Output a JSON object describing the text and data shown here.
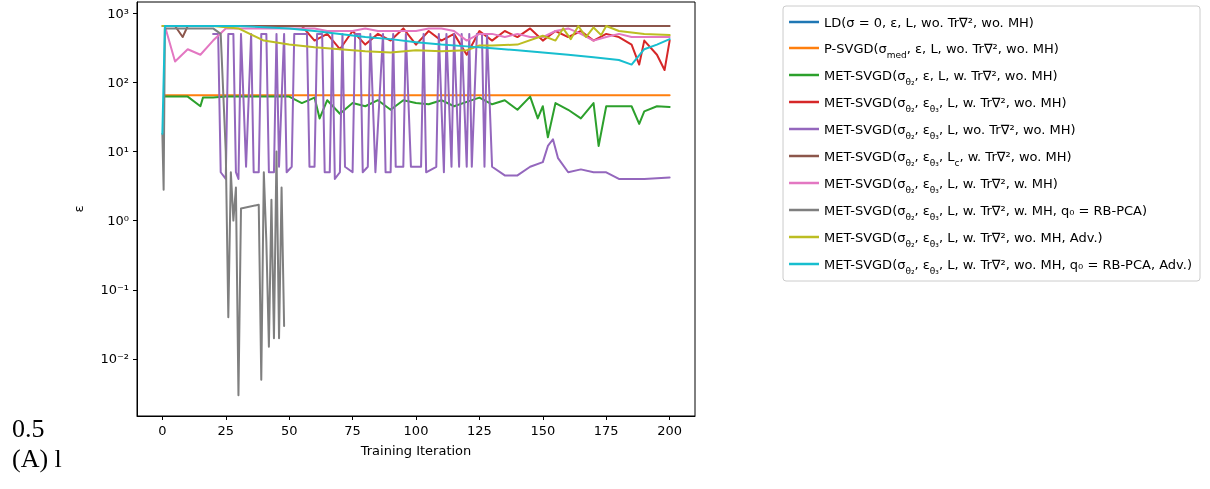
{
  "chart_data": {
    "type": "line",
    "xlabel": "Training Iteration",
    "ylabel": "ε",
    "log": "y",
    "grid": false,
    "legend": "right",
    "marker": "none",
    "line_style": "solid",
    "xlim": [
      -10,
      210
    ],
    "xticks": [
      0,
      25,
      50,
      75,
      100,
      125,
      150,
      175,
      200
    ],
    "ylim": [
      0.0015,
      1445
    ],
    "yticks": [
      {
        "value": 0.01,
        "label": "10⁻²"
      },
      {
        "value": 0.1,
        "label": "10⁻¹"
      },
      {
        "value": 1,
        "label": "10⁰"
      },
      {
        "value": 10,
        "label": "10¹"
      },
      {
        "value": 100,
        "label": "10²"
      },
      {
        "value": 1000,
        "label": "10³"
      }
    ],
    "annotations": [
      "0.5",
      "(A) l"
    ],
    "series": [
      {
        "name": "LD(σ = 0, ε, L, wo. Tr∇², wo. MH)",
        "color": "#1f77b4"
      },
      {
        "name": "P-SVGD(σ$_{med}$, ε, L, wo. Tr∇², wo. MH)",
        "color": "#ff7f0e",
        "x": [
          1,
          200
        ],
        "values": [
          65,
          65
        ]
      },
      {
        "name": "MET-SVGD(σ$_{θ₂}$, ε, L, w. Tr∇², wo. MH)",
        "color": "#2ca02c",
        "x": [
          1,
          10,
          15,
          16,
          20,
          25,
          30,
          40,
          50,
          55,
          60,
          62,
          65,
          70,
          75,
          80,
          85,
          90,
          95,
          100,
          105,
          110,
          115,
          120,
          125,
          130,
          135,
          140,
          145,
          148,
          150,
          152,
          155,
          160,
          165,
          170,
          172,
          175,
          180,
          185,
          188,
          190,
          195,
          200
        ],
        "values": [
          62,
          62,
          45,
          60,
          60,
          62,
          62,
          62,
          62,
          50,
          60,
          30,
          55,
          35,
          50,
          45,
          55,
          40,
          55,
          50,
          48,
          55,
          45,
          52,
          60,
          48,
          55,
          40,
          62,
          30,
          45,
          16,
          50,
          40,
          30,
          50,
          12,
          45,
          45,
          45,
          25,
          38,
          45,
          44
        ]
      },
      {
        "name": "MET-SVGD(σ$_{θ₂}$, ε$_{θ₃}$, L, w. Tr∇², wo. MH)",
        "color": "#d62728",
        "x": [
          1,
          55,
          60,
          65,
          70,
          75,
          80,
          85,
          90,
          95,
          100,
          105,
          110,
          115,
          120,
          125,
          130,
          135,
          140,
          145,
          150,
          155,
          160,
          165,
          170,
          175,
          180,
          185,
          188,
          190,
          195,
          198,
          200
        ],
        "values": [
          650,
          650,
          400,
          500,
          300,
          550,
          350,
          500,
          400,
          600,
          350,
          550,
          400,
          500,
          250,
          550,
          400,
          550,
          450,
          600,
          400,
          550,
          450,
          550,
          400,
          500,
          450,
          350,
          180,
          400,
          250,
          150,
          400
        ]
      },
      {
        "name": "MET-SVGD(σ$_{θ₂}$, ε$_{θ₃}$, L, wo. Tr∇², wo. MH)",
        "color": "#9467bd",
        "x": [
          20,
          22,
          23,
          25,
          26,
          28,
          29,
          30,
          31,
          33,
          35,
          36,
          38,
          39,
          41,
          42,
          44,
          45,
          46,
          48,
          49,
          51,
          52,
          55,
          57,
          58,
          60,
          61,
          63,
          64,
          66,
          67,
          68,
          70,
          71,
          72,
          75,
          76,
          78,
          79,
          81,
          82,
          84,
          87,
          88,
          90,
          91,
          92,
          95,
          96,
          98,
          100,
          102,
          103,
          104,
          108,
          109,
          111,
          112,
          114,
          115,
          117,
          118,
          120,
          121,
          122,
          124,
          126,
          127,
          128,
          130,
          135,
          140,
          145,
          150,
          152,
          154,
          156,
          160,
          165,
          170,
          175,
          180,
          190,
          200
        ],
        "values": [
          500,
          500,
          5,
          4,
          500,
          500,
          5,
          4,
          500,
          6,
          500,
          5,
          5,
          500,
          500,
          5,
          5,
          500,
          6,
          500,
          5,
          6,
          500,
          500,
          500,
          6,
          6,
          500,
          500,
          5,
          5,
          500,
          4,
          5,
          500,
          6,
          5,
          500,
          500,
          5,
          6,
          500,
          5,
          500,
          5,
          5,
          500,
          6,
          6,
          500,
          6,
          6,
          6,
          500,
          5,
          6,
          500,
          5,
          500,
          6,
          500,
          6,
          500,
          6,
          500,
          6,
          500,
          500,
          6,
          500,
          6,
          4.5,
          4.5,
          6,
          7,
          12,
          15,
          8,
          5,
          5.5,
          5,
          5,
          4,
          4,
          4.2
        ]
      },
      {
        "name": "MET-SVGD(σ$_{θ₂}$, ε$_{θ₃}$, L$_{c}$, w. Tr∇², wo. MH)",
        "color": "#8c564b",
        "x": [
          1,
          5,
          8,
          10,
          15,
          200
        ],
        "values": [
          650,
          650,
          450,
          650,
          650,
          650
        ]
      },
      {
        "name": "MET-SVGD(σ$_{θ₂}$, ε$_{θ₃}$, L, w. Tr∇², w. MH)",
        "color": "#e377c2",
        "x": [
          0,
          1,
          5,
          10,
          15,
          20,
          25,
          30,
          35,
          40,
          45,
          50,
          55,
          60,
          65,
          70,
          75,
          80,
          85,
          90,
          95,
          100,
          105,
          110,
          115,
          120,
          125,
          130,
          135,
          140,
          145,
          150,
          155,
          160,
          165,
          170,
          175,
          180,
          185,
          190,
          195,
          200
        ],
        "values": [
          650,
          650,
          200,
          300,
          250,
          400,
          600,
          600,
          600,
          600,
          600,
          600,
          600,
          600,
          550,
          550,
          550,
          600,
          550,
          550,
          550,
          550,
          600,
          600,
          550,
          400,
          500,
          500,
          450,
          500,
          450,
          450,
          550,
          600,
          500,
          400,
          450,
          500,
          450,
          450,
          450,
          450
        ]
      },
      {
        "name": "MET-SVGD(σ$_{θ₂}$, ε$_{θ₃}$, L, w. Tr∇², w. MH, q₀ = RB-PCA)",
        "color": "#7f7f7f",
        "x": [
          0,
          0.5,
          1,
          2,
          10,
          20,
          23,
          25,
          26,
          27,
          28,
          29,
          30,
          31,
          38,
          39,
          40,
          41,
          42,
          43,
          44,
          45,
          46,
          47,
          48
        ],
        "values": [
          18,
          2.8,
          600,
          600,
          600,
          600,
          500,
          10,
          0.04,
          5,
          1,
          3,
          0.003,
          1.5,
          1.7,
          0.005,
          5,
          0.5,
          0.015,
          2,
          0.02,
          10,
          0.02,
          3,
          0.03
        ]
      },
      {
        "name": "MET-SVGD(σ$_{θ₂}$, ε$_{θ₃}$, L, w. Tr∇², wo. MH, Adv.)",
        "color": "#bcbd22",
        "x": [
          0,
          20,
          30,
          40,
          50,
          60,
          70,
          80,
          90,
          100,
          110,
          120,
          125,
          130,
          140,
          150,
          155,
          158,
          161,
          164,
          167,
          170,
          173,
          175,
          180,
          190,
          200
        ],
        "values": [
          650,
          650,
          600,
          400,
          350,
          320,
          300,
          280,
          270,
          290,
          280,
          290,
          340,
          340,
          350,
          470,
          400,
          600,
          420,
          650,
          450,
          620,
          480,
          650,
          550,
          500,
          480
        ]
      },
      {
        "name": "MET-SVGD(σ$_{θ₂}$, ε$_{θ₃}$, L, w. Tr∇², wo. MH, q₀ = RB-PCA, Adv.)",
        "color": "#17becf",
        "x": [
          0,
          1,
          30,
          50,
          60,
          70,
          80,
          90,
          100,
          110,
          120,
          130,
          140,
          150,
          160,
          170,
          180,
          185,
          190,
          195,
          200
        ],
        "values": [
          18,
          650,
          650,
          600,
          550,
          500,
          450,
          420,
          380,
          350,
          330,
          310,
          290,
          270,
          250,
          230,
          210,
          180,
          300,
          350,
          420
        ]
      }
    ]
  }
}
